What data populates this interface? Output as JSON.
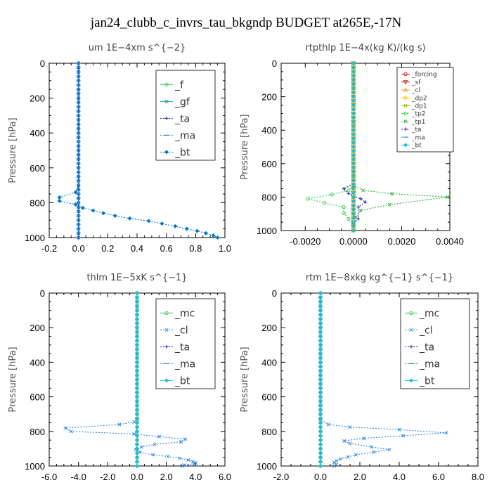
{
  "figure": {
    "title": "jan24_clubb_c_invrs_tau_bkgndp  BUDGET at265E,-17N"
  },
  "chart_data": [
    {
      "type": "line",
      "title": "um   1E−4xm s^{−2}",
      "ylabel": "Pressure [hPa]",
      "xlim": [
        -0.2,
        1.0
      ],
      "ylim": [
        1000,
        0
      ],
      "xticks": [
        "-0.2",
        "0.0",
        "0.2",
        "0.4",
        "0.6",
        "0.8",
        "1.0"
      ],
      "xtick_values": [
        -0.2,
        0.0,
        0.2,
        0.4,
        0.6,
        0.8,
        1.0
      ],
      "yticks": [
        "0",
        "200",
        "400",
        "600",
        "800",
        "1000"
      ],
      "ytick_values": [
        0,
        200,
        400,
        600,
        800,
        1000
      ],
      "legend_position": "top-right",
      "series": [
        {
          "name": "_f",
          "color": "#2ecc40",
          "marker": "circle",
          "dashed": false,
          "constant": 0
        },
        {
          "name": "_gf",
          "color": "#17a589",
          "marker": "cross",
          "dashed": false,
          "constant": 0
        },
        {
          "name": "_ta",
          "color": "#1f1fbf",
          "marker": "plus",
          "dashed": true,
          "constant": 0
        },
        {
          "name": "_ma",
          "color": "#2e86de",
          "marker": "dash",
          "dashed": true,
          "constant": 0
        },
        {
          "name": "_bt",
          "color": "#0077cc",
          "marker": "diamond",
          "dashed": true,
          "x": [
            0,
            0,
            -0.02,
            -0.13,
            -0.13,
            -0.02,
            0.03,
            0.1,
            0.17,
            0.25,
            0.35,
            0.48,
            0.57,
            0.66,
            0.74,
            0.81,
            0.87,
            0.92,
            0.95
          ],
          "y": [
            0,
            700,
            740,
            770,
            790,
            810,
            830,
            845,
            860,
            875,
            890,
            905,
            920,
            935,
            950,
            962,
            975,
            988,
            1000
          ]
        }
      ]
    },
    {
      "type": "line",
      "title": "rtpthlp   1E−4x(kg K)/(kg s)",
      "ylabel": "Pressure [hPa]",
      "xlim": [
        -0.003,
        0.004
      ],
      "ylim": [
        1000,
        0
      ],
      "xticks": [
        "-0.0020",
        "0.0000",
        "0.0020",
        "0.0040"
      ],
      "xtick_values": [
        -0.002,
        0.0,
        0.002,
        0.004
      ],
      "yticks": [
        "0",
        "200",
        "400",
        "600",
        "800",
        "1000"
      ],
      "ytick_values": [
        0,
        200,
        400,
        600,
        800,
        1000
      ],
      "legend_position": "top-right",
      "series": [
        {
          "name": "_forcing",
          "color": "#dd2222",
          "marker": "circle",
          "dashed": false,
          "constant": 0
        },
        {
          "name": "_sf",
          "color": "#cc1111",
          "marker": "triangle-down",
          "dashed": false,
          "constant": 0
        },
        {
          "name": "_cl",
          "color": "#e8a317",
          "marker": "triangle",
          "dashed": false,
          "constant": 0
        },
        {
          "name": "_dp2",
          "color": "#f2c418",
          "marker": "circle",
          "dashed": false,
          "constant": 0
        },
        {
          "name": "_dp1",
          "color": "#88c000",
          "marker": "cross",
          "dashed": false,
          "constant": 0
        },
        {
          "name": "_tp2",
          "color": "#2ecc40",
          "marker": "circle",
          "dashed": true,
          "x": [
            0,
            0,
            -0.0002,
            -0.0009,
            -0.0019,
            -0.0012,
            -0.0004,
            -0.0004,
            -0.0002,
            0,
            0
          ],
          "y": [
            0,
            730,
            760,
            785,
            810,
            835,
            860,
            895,
            930,
            965,
            1000
          ]
        },
        {
          "name": "_tp1",
          "color": "#2eaa3a",
          "marker": "cross",
          "dashed": true,
          "x": [
            0,
            0,
            0.0004,
            0.0016,
            0.0039,
            0.0015,
            0.0003,
            0.0001,
            0,
            0
          ],
          "y": [
            0,
            730,
            760,
            780,
            800,
            845,
            880,
            920,
            960,
            1000
          ]
        },
        {
          "name": "_ta",
          "color": "#1f1fbf",
          "marker": "plus",
          "dashed": true,
          "x": [
            0,
            0,
            -0.0004,
            -0.0002,
            0.0003,
            0.0005,
            0.0002,
            0.0002,
            0,
            0
          ],
          "y": [
            0,
            720,
            750,
            780,
            810,
            830,
            860,
            930,
            960,
            1000
          ]
        },
        {
          "name": "_ma",
          "color": "#2e86de",
          "marker": "dash",
          "dashed": true,
          "constant": 0
        },
        {
          "name": "_bt",
          "color": "#22bbdd",
          "marker": "diamond",
          "dashed": false,
          "constant": 0
        }
      ]
    },
    {
      "type": "line",
      "title": "thlm   1E−5xK s^{−1}",
      "ylabel": "Pressure [hPa]",
      "xlim": [
        -6.0,
        6.0
      ],
      "ylim": [
        1000,
        0
      ],
      "xticks": [
        "-6.0",
        "-4.0",
        "-2.0",
        "0.0",
        "2.0",
        "4.0",
        "6.0"
      ],
      "xtick_values": [
        -6,
        -4,
        -2,
        0,
        2,
        4,
        6
      ],
      "yticks": [
        "0",
        "200",
        "400",
        "600",
        "800",
        "1000"
      ],
      "ytick_values": [
        0,
        200,
        400,
        600,
        800,
        1000
      ],
      "legend_position": "top-right",
      "series": [
        {
          "name": "_mc",
          "color": "#2ecc40",
          "marker": "circle",
          "dashed": false,
          "constant": 0
        },
        {
          "name": "_cl",
          "color": "#2e86de",
          "marker": "cross",
          "dashed": true,
          "x": [
            0,
            0,
            -0.2,
            -1.2,
            -4.9,
            -4.5,
            -0.2,
            1.5,
            3.3,
            3.0,
            1.2,
            0.3,
            -0.1,
            0.2,
            1.1,
            2.1,
            2.9,
            3.5,
            3.8,
            4.0,
            3.9,
            3.2,
            3.1
          ],
          "y": [
            0,
            730,
            745,
            760,
            780,
            800,
            815,
            830,
            845,
            860,
            875,
            890,
            905,
            920,
            935,
            945,
            955,
            965,
            975,
            982,
            988,
            994,
            1000
          ]
        },
        {
          "name": "_ta",
          "color": "#1f1fbf",
          "marker": "plus",
          "dashed": true,
          "constant": 0
        },
        {
          "name": "_ma",
          "color": "#2e86de",
          "marker": "dash",
          "dashed": true,
          "constant": 0
        },
        {
          "name": "_bt",
          "color": "#22bbdd",
          "marker": "diamond",
          "dashed": false,
          "constant": 0
        }
      ]
    },
    {
      "type": "line",
      "title": "rtm   1E−8xkg kg^{−1} s^{−1}",
      "ylabel": "Pressure [hPa]",
      "xlim": [
        -2.0,
        8.0
      ],
      "ylim": [
        1000,
        0
      ],
      "xticks": [
        "-2.0",
        "0.0",
        "2.0",
        "4.0",
        "6.0",
        "8.0"
      ],
      "xtick_values": [
        -2,
        0,
        2,
        4,
        6,
        8
      ],
      "yticks": [
        "0",
        "200",
        "400",
        "600",
        "800",
        "1000"
      ],
      "ytick_values": [
        0,
        200,
        400,
        600,
        800,
        1000
      ],
      "legend_position": "top-right",
      "series": [
        {
          "name": "_mc",
          "color": "#2ecc40",
          "marker": "circle",
          "dashed": false,
          "constant": 0
        },
        {
          "name": "_cl",
          "color": "#2e86de",
          "marker": "cross",
          "dashed": true,
          "x": [
            0,
            0,
            0.4,
            1.5,
            4.0,
            6.4,
            4.2,
            2.2,
            1.2,
            1.5,
            2.6,
            3.5,
            2.7,
            1.8,
            1.4,
            1.0,
            0.8,
            0.7,
            0.8,
            0.7
          ],
          "y": [
            0,
            730,
            760,
            775,
            790,
            808,
            825,
            840,
            855,
            870,
            890,
            905,
            920,
            935,
            948,
            960,
            970,
            980,
            990,
            1000
          ]
        },
        {
          "name": "_ta",
          "color": "#1f1fbf",
          "marker": "plus",
          "dashed": true,
          "constant": 0
        },
        {
          "name": "_ma",
          "color": "#2e86de",
          "marker": "dash",
          "dashed": true,
          "constant": 0
        },
        {
          "name": "_bt",
          "color": "#22bbdd",
          "marker": "diamond",
          "dashed": false,
          "constant": 0
        }
      ]
    }
  ]
}
